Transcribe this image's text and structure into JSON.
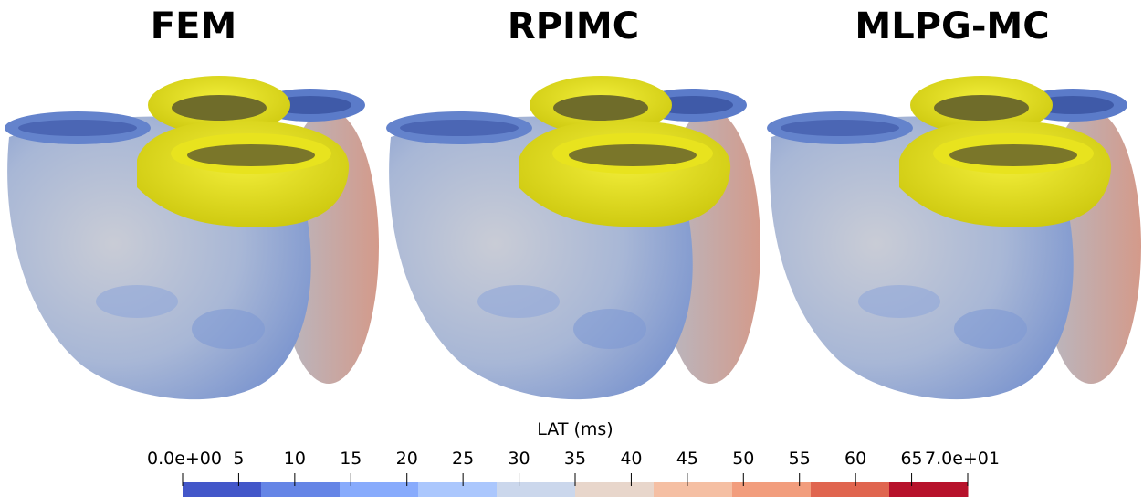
{
  "panels": [
    {
      "title": "FEM"
    },
    {
      "title": "RPIMC"
    },
    {
      "title": "MLPG-MC"
    }
  ],
  "colorbar": {
    "title": "LAT (ms)",
    "lim": [
      0,
      70
    ],
    "ticks": [
      {
        "value": 0,
        "label": "0.0e+00"
      },
      5,
      10,
      15,
      20,
      25,
      30,
      35,
      40,
      45,
      50,
      55,
      60,
      65,
      {
        "value": 70,
        "label": "7.0e+01"
      }
    ],
    "colors": [
      "#4357c9",
      "#6585e6",
      "#88abfc",
      "#abc7fd",
      "#cbd7ec",
      "#e8d6cb",
      "#f5bfa3",
      "#f29d7d",
      "#e0654f",
      "#b7122b"
    ]
  }
}
